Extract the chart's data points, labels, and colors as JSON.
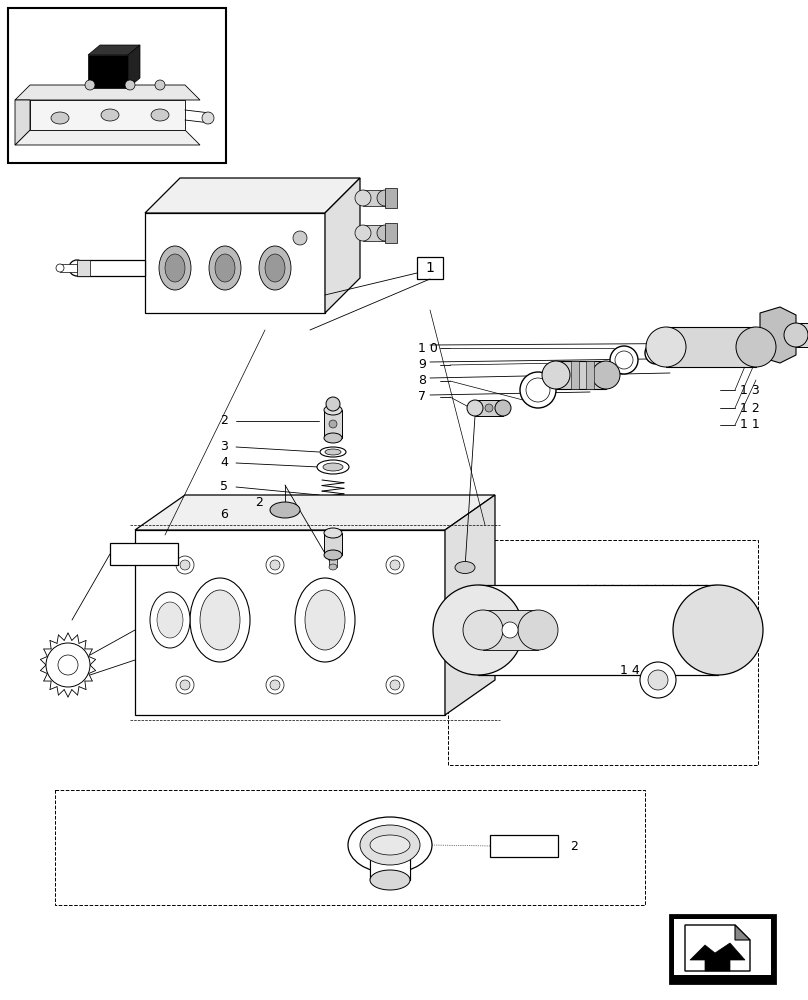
{
  "bg_color": "#ffffff",
  "line_color": "#000000",
  "fig_width": 8.08,
  "fig_height": 10.0,
  "dpi": 100
}
